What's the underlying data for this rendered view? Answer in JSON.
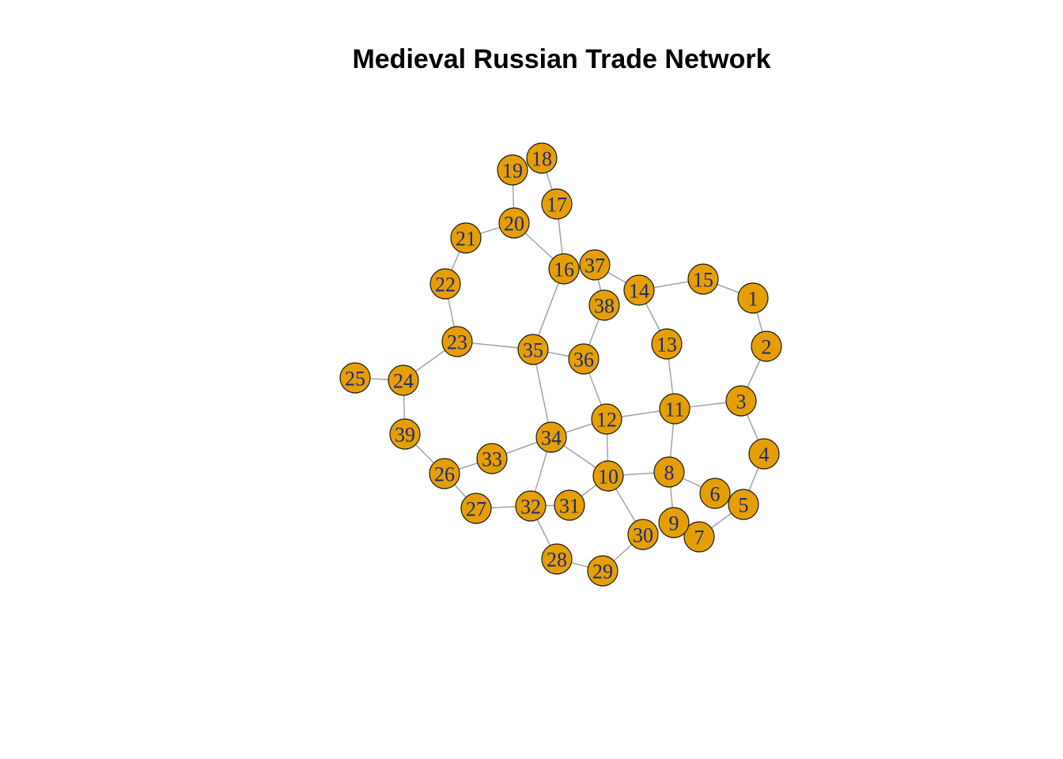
{
  "title": "Medieval Russian Trade Network",
  "colors": {
    "node_fill": "#e69f00",
    "node_border": "#1a1a1a",
    "edge": "#a3a3a3",
    "label": "#1f2a7a"
  },
  "nodes": [
    "1",
    "2",
    "3",
    "4",
    "5",
    "6",
    "7",
    "8",
    "9",
    "10",
    "11",
    "12",
    "13",
    "14",
    "15",
    "16",
    "17",
    "18",
    "19",
    "20",
    "21",
    "22",
    "23",
    "24",
    "25",
    "26",
    "27",
    "28",
    "29",
    "30",
    "31",
    "32",
    "33",
    "34",
    "35",
    "36",
    "37",
    "38",
    "39"
  ],
  "edges": [
    [
      "15",
      "1"
    ],
    [
      "1",
      "2"
    ],
    [
      "2",
      "3"
    ],
    [
      "3",
      "11"
    ],
    [
      "3",
      "4"
    ],
    [
      "4",
      "5"
    ],
    [
      "5",
      "7"
    ],
    [
      "7",
      "9"
    ],
    [
      "9",
      "8"
    ],
    [
      "8",
      "6"
    ],
    [
      "8",
      "10"
    ],
    [
      "8",
      "11"
    ],
    [
      "11",
      "12"
    ],
    [
      "11",
      "13"
    ],
    [
      "13",
      "14"
    ],
    [
      "14",
      "15"
    ],
    [
      "14",
      "37"
    ],
    [
      "37",
      "38"
    ],
    [
      "38",
      "36"
    ],
    [
      "36",
      "35"
    ],
    [
      "36",
      "12"
    ],
    [
      "12",
      "10"
    ],
    [
      "12",
      "34"
    ],
    [
      "10",
      "34"
    ],
    [
      "10",
      "31"
    ],
    [
      "10",
      "30"
    ],
    [
      "30",
      "29"
    ],
    [
      "29",
      "28"
    ],
    [
      "28",
      "32"
    ],
    [
      "32",
      "31"
    ],
    [
      "32",
      "27"
    ],
    [
      "32",
      "34"
    ],
    [
      "27",
      "26"
    ],
    [
      "26",
      "33"
    ],
    [
      "33",
      "34"
    ],
    [
      "26",
      "39"
    ],
    [
      "39",
      "24"
    ],
    [
      "24",
      "25"
    ],
    [
      "24",
      "23"
    ],
    [
      "23",
      "35"
    ],
    [
      "23",
      "22"
    ],
    [
      "22",
      "21"
    ],
    [
      "21",
      "20"
    ],
    [
      "20",
      "19"
    ],
    [
      "20",
      "16"
    ],
    [
      "16",
      "17"
    ],
    [
      "17",
      "18"
    ],
    [
      "16",
      "35"
    ],
    [
      "34",
      "35"
    ]
  ]
}
